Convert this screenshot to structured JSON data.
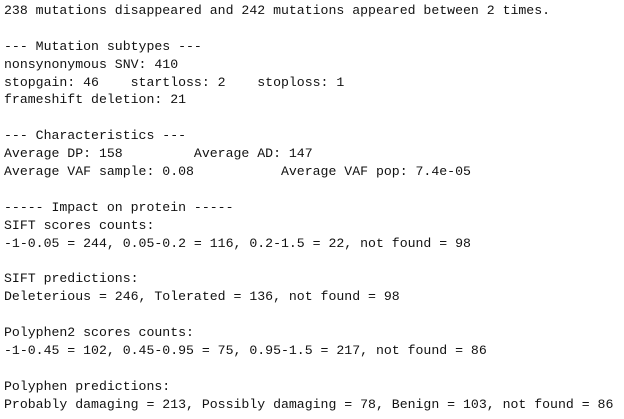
{
  "blocks": [
    [
      "238 mutations disappeared and 242 mutations appeared between 2 times."
    ],
    [
      "--- Mutation subtypes ---",
      "nonsynonymous SNV: 410",
      "stopgain: 46    startloss: 2    stoploss: 1",
      "frameshift deletion: 21"
    ],
    [
      "--- Characteristics ---",
      "Average DP: 158         Average AD: 147",
      "Average VAF sample: 0.08           Average VAF pop: 7.4e-05"
    ],
    [
      "----- Impact on protein -----",
      "SIFT scores counts:",
      "-1-0.05 = 244, 0.05-0.2 = 116, 0.2-1.5 = 22, not found = 98"
    ],
    [
      "SIFT predictions:",
      "Deleterious = 246, Tolerated = 136, not found = 98"
    ],
    [
      "Polyphen2 scores counts:",
      "-1-0.45 = 102, 0.45-0.95 = 75, 0.95-1.5 = 217, not found = 86"
    ],
    [
      "Polyphen predictions:",
      "Probably damaging = 213, Possibly damaging = 78, Benign = 103, not found = 86"
    ]
  ]
}
